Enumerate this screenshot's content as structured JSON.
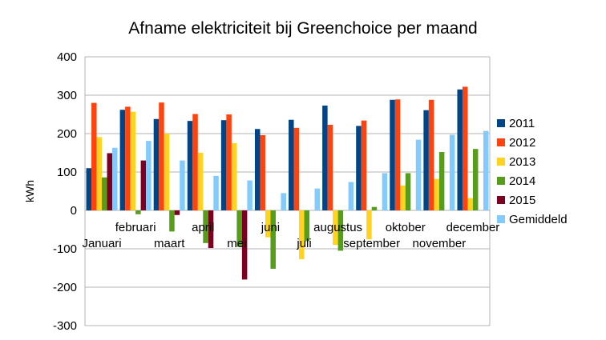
{
  "chart_data": {
    "type": "bar",
    "title": "Afname elektriciteit bij Greenchoice per maand",
    "xlabel": "",
    "ylabel": "kWh",
    "ylim": [
      -300,
      400
    ],
    "yticks": [
      400,
      300,
      200,
      100,
      0,
      -100,
      -200,
      -300
    ],
    "grid": true,
    "legend_position": "right",
    "categories": [
      "Januari",
      "februari",
      "maart",
      "april",
      "mei",
      "juni",
      "juli",
      "augustus",
      "september",
      "oktober",
      "november",
      "december"
    ],
    "series": [
      {
        "name": "2011",
        "color": "#004586",
        "values": [
          110,
          262,
          238,
          233,
          235,
          212,
          236,
          273,
          220,
          288,
          261,
          315
        ]
      },
      {
        "name": "2012",
        "color": "#ff420e",
        "values": [
          280,
          270,
          281,
          251,
          250,
          196,
          215,
          223,
          234,
          289,
          288,
          322
        ]
      },
      {
        "name": "2013",
        "color": "#ffd320",
        "values": [
          191,
          257,
          200,
          150,
          175,
          -70,
          -127,
          -90,
          -75,
          65,
          82,
          32
        ]
      },
      {
        "name": "2014",
        "color": "#579d1c",
        "values": [
          86,
          -10,
          -55,
          -85,
          -95,
          -152,
          -80,
          -105,
          9,
          97,
          152,
          160
        ]
      },
      {
        "name": "2015",
        "color": "#7e0021",
        "values": [
          149,
          130,
          -12,
          -98,
          -180,
          null,
          null,
          null,
          null,
          null,
          null,
          null
        ]
      },
      {
        "name": "Gemiddeld",
        "color": "#83caff",
        "values": [
          163,
          181,
          130,
          90,
          78,
          45,
          57,
          74,
          97,
          184,
          197,
          207
        ]
      }
    ]
  }
}
